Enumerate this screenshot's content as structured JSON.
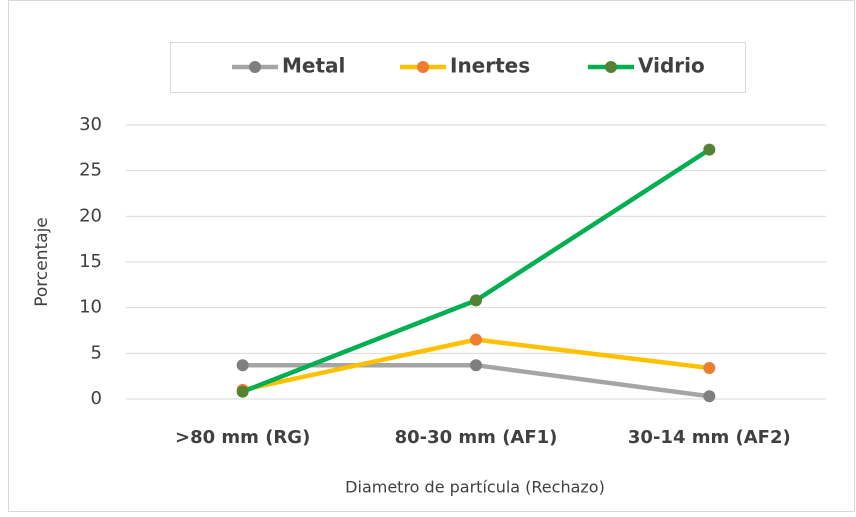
{
  "chart_data": {
    "type": "line",
    "categories": [
      ">80 mm (RG)",
      "80-30 mm (AF1)",
      "30-14 mm (AF2)"
    ],
    "series": [
      {
        "name": "Metal",
        "color": "#A5A5A5",
        "marker_color": "#7F7F7F",
        "values": [
          3.7,
          3.7,
          0.3
        ]
      },
      {
        "name": "Inertes",
        "color": "#FFC000",
        "marker_color": "#ED7D31",
        "values": [
          1.0,
          6.5,
          3.4
        ]
      },
      {
        "name": "Vidrio",
        "color": "#00B050",
        "marker_color": "#548235",
        "values": [
          0.8,
          10.8,
          27.3
        ]
      }
    ],
    "ylim": [
      0,
      30
    ],
    "yticks": [
      0,
      5,
      10,
      15,
      20,
      25,
      30
    ],
    "grid": true,
    "ylabel": "Porcentaje",
    "xlabel": "Diametro de partícula (Rechazo)",
    "legend": "top"
  }
}
